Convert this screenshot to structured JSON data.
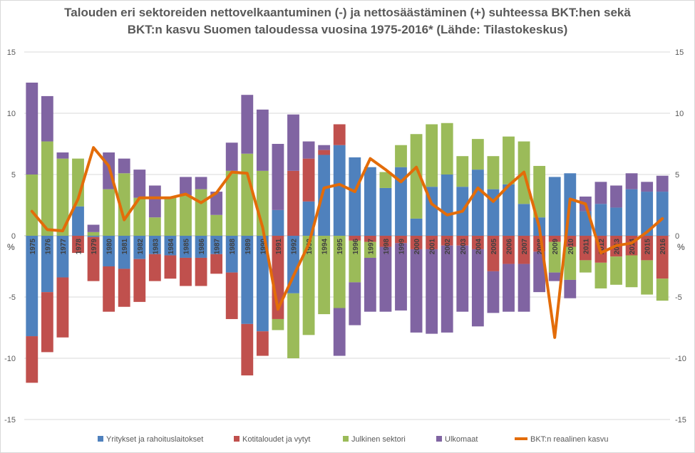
{
  "chart_data": {
    "type": "bar",
    "title_line1": "Talouden eri sektoreiden nettovelkaantuminen (-) ja nettosäästäminen (+) suhteessa BKT:hen sekä",
    "title_line2": "BKT:n kasvu Suomen taloudessa vuosina 1975-2016* (Lähde: Tilastokeskus)",
    "ylabel_left": "%",
    "ylabel_right": "%",
    "ylim": [
      -15,
      15
    ],
    "yticks": [
      15,
      10,
      5,
      0,
      -5,
      -10,
      -15
    ],
    "stacked": true,
    "legend_position": "bottom",
    "categories": [
      "1975",
      "1976",
      "1977",
      "1978",
      "1979",
      "1980",
      "1981",
      "1982",
      "1983",
      "1984",
      "1985",
      "1986",
      "1987",
      "1988",
      "1989",
      "1990",
      "1991",
      "1992",
      "1993",
      "1994",
      "1995",
      "1996",
      "1997",
      "1998",
      "1999",
      "2000",
      "2001",
      "2002",
      "2003",
      "2004",
      "2005",
      "2006",
      "2007",
      "2008",
      "2009",
      "2010",
      "2011",
      "2012",
      "2013",
      "2014",
      "2015",
      "2016"
    ],
    "series": [
      {
        "name": "Yritykset ja rahoituslaitokset",
        "color": "#4f81bd",
        "values": [
          -8.2,
          -4.6,
          -3.4,
          2.4,
          -0.1,
          -2.5,
          -2.7,
          -1.9,
          -1.5,
          -1.6,
          -1.8,
          -1.8,
          -1.5,
          -3.0,
          -7.2,
          -7.8,
          2.1,
          -4.7,
          2.8,
          6.6,
          7.4,
          6.4,
          5.6,
          3.9,
          5.6,
          1.4,
          4.0,
          5.0,
          4.0,
          5.4,
          3.8,
          4.2,
          2.6,
          1.5,
          4.8,
          5.1,
          2.0,
          2.6,
          2.3,
          3.8,
          3.6,
          3.6
        ]
      },
      {
        "name": "Kotitaloudet ja vytyt",
        "color": "#c0504d",
        "values": [
          -3.8,
          -4.9,
          -4.9,
          -1.4,
          -3.6,
          -3.7,
          -3.1,
          -3.5,
          -2.2,
          -1.9,
          -2.3,
          -2.3,
          -1.6,
          -3.8,
          -4.2,
          -2.0,
          -6.8,
          5.3,
          3.5,
          0.4,
          1.7,
          -0.4,
          -0.5,
          -0.9,
          -0.6,
          -1.1,
          -1.1,
          -0.8,
          -0.8,
          -1.1,
          -2.9,
          -2.3,
          -2.3,
          -1.3,
          -0.5,
          -0.9,
          -2.0,
          -2.2,
          -1.7,
          -1.6,
          -2.0,
          -3.5
        ]
      },
      {
        "name": "Julkinen sektori",
        "color": "#9bbb59",
        "values": [
          5.0,
          7.7,
          6.3,
          3.9,
          0.3,
          3.8,
          5.1,
          3.1,
          1.5,
          3.2,
          3.3,
          3.8,
          1.7,
          5.3,
          6.7,
          5.3,
          -0.9,
          -5.3,
          -8.1,
          -6.4,
          -5.9,
          -3.4,
          -1.3,
          1.3,
          1.8,
          6.9,
          5.1,
          4.2,
          2.5,
          2.5,
          2.7,
          3.9,
          5.1,
          4.2,
          -2.5,
          -2.7,
          -1.0,
          -2.1,
          -2.3,
          -2.6,
          -2.8,
          -1.8
        ]
      },
      {
        "name": "Ulkomaat",
        "color": "#8064a2",
        "values": [
          7.5,
          3.7,
          0.5,
          0.0,
          0.6,
          3.0,
          1.2,
          2.3,
          2.6,
          0.0,
          1.5,
          1.0,
          1.9,
          2.3,
          4.8,
          5.0,
          5.4,
          4.6,
          1.4,
          0.4,
          -3.9,
          -3.5,
          -4.4,
          -5.3,
          -5.5,
          -6.8,
          -6.9,
          -7.1,
          -5.4,
          -6.3,
          -3.4,
          -3.9,
          -3.9,
          -3.3,
          -0.7,
          -1.5,
          1.2,
          1.8,
          1.8,
          1.3,
          0.8,
          1.3
        ]
      },
      {
        "name": "BKT:n reaalinen kasvu",
        "type": "line",
        "color": "#e36c09",
        "values": [
          2.0,
          0.5,
          0.4,
          3.0,
          7.2,
          5.7,
          1.3,
          3.1,
          3.1,
          3.1,
          3.4,
          2.7,
          3.5,
          5.2,
          5.1,
          0.7,
          -6.0,
          -3.3,
          -0.7,
          3.9,
          4.2,
          3.6,
          6.3,
          5.4,
          4.4,
          5.6,
          2.6,
          1.7,
          2.0,
          3.9,
          2.8,
          4.1,
          5.2,
          0.7,
          -8.3,
          3.0,
          2.6,
          -1.4,
          -0.8,
          -0.6,
          0.3,
          1.4
        ]
      }
    ]
  }
}
